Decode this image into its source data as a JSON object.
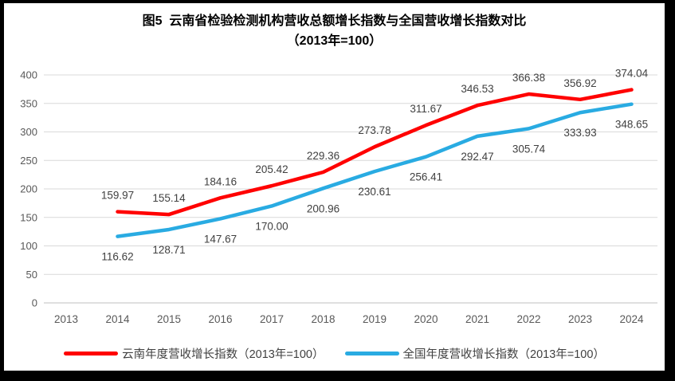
{
  "title": {
    "line1": "图5  云南省检验检测机构营收总额增长指数与全国营收增长指数对比",
    "line2": "（2013年=100）"
  },
  "colors": {
    "yunnan_line": "#FF0000",
    "national_line": "#29ABE2",
    "gridline": "#D9D9D9",
    "axis_line": "#BFBFBF",
    "tick_label": "#595959",
    "data_label": "#404040",
    "frame_border": "#000000"
  },
  "chart_data": {
    "type": "line",
    "title": "图5 云南省检验检测机构营收总额增长指数与全国营收增长指数对比（2013年=100）",
    "categories": [
      "2013",
      "2014",
      "2015",
      "2016",
      "2017",
      "2018",
      "2019",
      "2020",
      "2021",
      "2022",
      "2023",
      "2024"
    ],
    "series": [
      {
        "name": "云南年度营收增长指数（2013年=100）",
        "color": "#FF0000",
        "label_position": "above",
        "values": [
          null,
          159.97,
          155.14,
          184.16,
          205.42,
          229.36,
          273.78,
          311.67,
          346.53,
          366.38,
          356.92,
          374.04
        ]
      },
      {
        "name": "全国年度营收增长指数（2013年=100）",
        "color": "#29ABE2",
        "label_position": "below",
        "values": [
          null,
          116.62,
          128.71,
          147.67,
          170.0,
          200.96,
          230.61,
          256.41,
          292.47,
          305.74,
          333.93,
          348.65
        ]
      }
    ],
    "xlabel": "",
    "ylabel": "",
    "ylim": [
      0,
      400
    ],
    "yticks": [
      0,
      50,
      100,
      150,
      200,
      250,
      300,
      350,
      400
    ],
    "grid": "horizontal",
    "legend_position": "bottom",
    "data_labels_decimals": 2
  }
}
